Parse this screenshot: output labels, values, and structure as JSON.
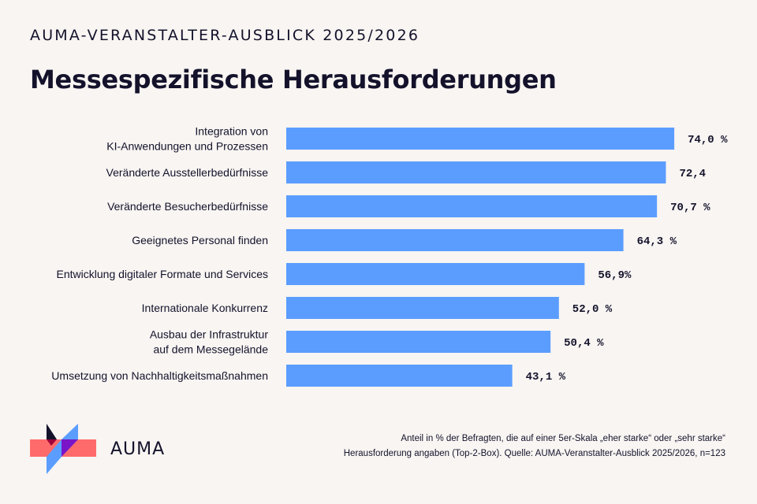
{
  "kicker": "AUMA-VERANSTALTER-AUSBLICK 2025/2026",
  "title": "Messespezifische Herausforderungen",
  "chart_data": {
    "type": "bar",
    "orientation": "horizontal",
    "categories": [
      [
        "Integration von",
        "KI-Anwendungen und Prozessen"
      ],
      [
        "Veränderte Ausstellerbedürfnisse"
      ],
      [
        "Veränderte Besucherbedürfnisse"
      ],
      [
        "Geeignetes Personal finden"
      ],
      [
        "Entwicklung digitaler Formate und Services"
      ],
      [
        "Internationale Konkurrenz"
      ],
      [
        "Ausbau der Infrastruktur",
        "auf dem Messegelände"
      ],
      [
        "Umsetzung von Nachhaltigkeitsmaßnahmen"
      ]
    ],
    "values": [
      74.0,
      72.4,
      70.7,
      64.3,
      56.9,
      52.0,
      50.4,
      43.1
    ],
    "data_labels": [
      "74,0 %",
      "72,4",
      "70,7 %",
      "64,3 %",
      "56,9%",
      "52,0 %",
      "50,4 %",
      "43,1 %"
    ],
    "bar_color": "#5b9dff",
    "xlim": [
      0,
      100
    ],
    "grid": false
  },
  "footnote": {
    "line1": "Anteil in % der Befragten, die auf einer 5er-Skala „eher starke“ oder „sehr starke“",
    "line2": "Herausforderung angaben (Top-2-Box). Quelle: AUMA-Veranstalter-Ausblick 2025/2026, n=123"
  },
  "logo": {
    "text": "AUMA",
    "colors": [
      "#ff6b6b",
      "#5b9dff",
      "#14122b",
      "#7a14c8",
      "#a0003a"
    ]
  }
}
